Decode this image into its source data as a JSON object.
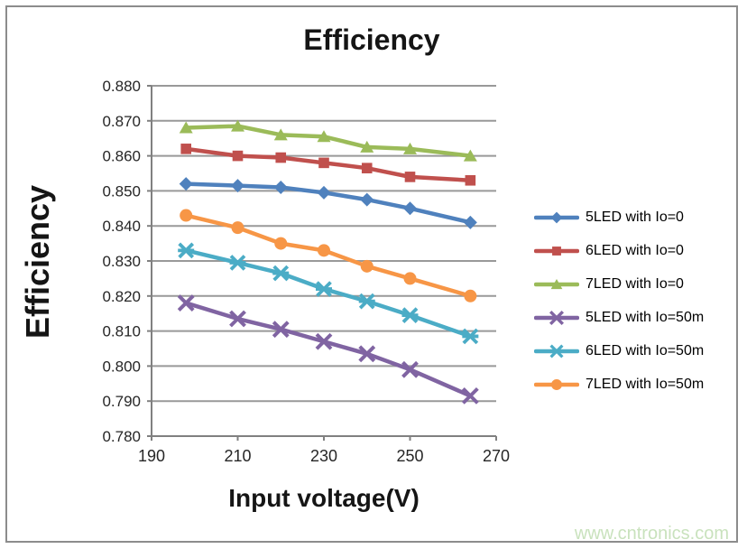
{
  "page": {
    "title": "Efficiency",
    "watermark": "www.cntronics.com"
  },
  "chart_data": {
    "type": "line",
    "title": "Efficiency",
    "xlabel": "Input voltage(V)",
    "ylabel": "Efficiency",
    "x": [
      198,
      210,
      220,
      230,
      240,
      250,
      264
    ],
    "xlim": [
      190,
      270
    ],
    "xticks": [
      190,
      210,
      230,
      250,
      270
    ],
    "ylim": [
      0.78,
      0.88
    ],
    "ytick_step": 0.01,
    "ytick_labels": [
      "0.880",
      "0.870",
      "0.860",
      "0.850",
      "0.840",
      "0.830",
      "0.820",
      "0.810",
      "0.800",
      "0.790",
      "0.780"
    ],
    "grid": "horizontal",
    "legend_position": "right",
    "series": [
      {
        "name": "5LED with Io=0",
        "color": "#4F81BD",
        "marker": "diamond",
        "values": [
          0.852,
          0.8515,
          0.851,
          0.8495,
          0.8475,
          0.845,
          0.841
        ]
      },
      {
        "name": "6LED with Io=0",
        "color": "#C0504D",
        "marker": "square",
        "values": [
          0.862,
          0.86,
          0.8595,
          0.858,
          0.8565,
          0.854,
          0.853
        ]
      },
      {
        "name": "7LED with Io=0",
        "color": "#9BBB59",
        "marker": "triangle",
        "values": [
          0.868,
          0.8685,
          0.866,
          0.8655,
          0.8625,
          0.862,
          0.86
        ]
      },
      {
        "name": "5LED with Io=50m",
        "color": "#8064A2",
        "marker": "x",
        "values": [
          0.818,
          0.8135,
          0.8105,
          0.807,
          0.8035,
          0.799,
          0.7915
        ]
      },
      {
        "name": "6LED with Io=50m",
        "color": "#4BACC6",
        "marker": "asterisk",
        "values": [
          0.833,
          0.8295,
          0.8265,
          0.822,
          0.8185,
          0.8145,
          0.8085
        ]
      },
      {
        "name": "7LED with Io=50m",
        "color": "#F79646",
        "marker": "circle",
        "values": [
          0.843,
          0.8395,
          0.835,
          0.833,
          0.8285,
          0.825,
          0.82
        ]
      }
    ]
  },
  "colors": {
    "axis": "#808080",
    "grid": "#999999",
    "frame": "#8c8c8c",
    "tick_text": "#262626",
    "title_text": "#151515",
    "watermark": "#c9e2bd"
  }
}
